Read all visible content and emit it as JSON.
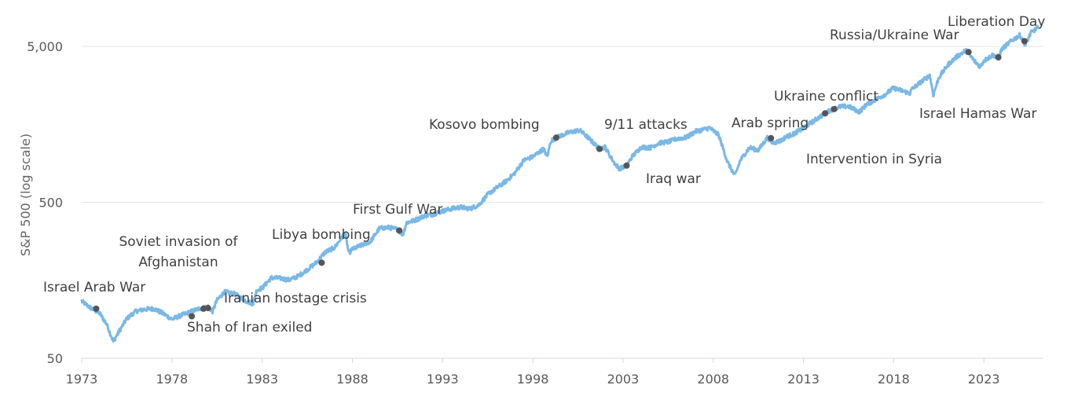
{
  "chart_data": {
    "type": "line",
    "title": "",
    "xlabel": "",
    "ylabel": "S&P 500 (log  scale)",
    "y_scale": "log",
    "ylim": [
      50,
      7000
    ],
    "xlim": [
      1973.0,
      2026.3
    ],
    "grid": true,
    "colors": {
      "series": "#7ab8e5",
      "dots": "#555555",
      "grid": "#e3e6ea",
      "text": "#3f3f3f"
    },
    "x_ticks": [
      {
        "value": 1973,
        "label": "1973"
      },
      {
        "value": 1978,
        "label": "1978"
      },
      {
        "value": 1983,
        "label": "1983"
      },
      {
        "value": 1988,
        "label": "1988"
      },
      {
        "value": 1993,
        "label": "1993"
      },
      {
        "value": 1998,
        "label": "1998"
      },
      {
        "value": 2003,
        "label": "2003"
      },
      {
        "value": 2008,
        "label": "2008"
      },
      {
        "value": 2013,
        "label": "2013"
      },
      {
        "value": 2018,
        "label": "2018"
      },
      {
        "value": 2023,
        "label": "2023"
      }
    ],
    "y_ticks": [
      {
        "value": 50,
        "label": "50"
      },
      {
        "value": 500,
        "label": "500"
      },
      {
        "value": 5000,
        "label": "5,000"
      }
    ],
    "series": [
      {
        "name": "S&P 500",
        "x": [
          1973.0,
          1973.5,
          1974.0,
          1974.4,
          1974.75,
          1975.0,
          1975.5,
          1976.0,
          1976.5,
          1977.0,
          1977.5,
          1978.0,
          1978.5,
          1979.0,
          1979.5,
          1980.0,
          1980.25,
          1980.5,
          1980.9,
          1981.5,
          1982.0,
          1982.5,
          1982.7,
          1983.0,
          1983.5,
          1984.0,
          1984.5,
          1985.0,
          1985.5,
          1986.0,
          1986.5,
          1987.0,
          1987.6,
          1987.8,
          1988.0,
          1988.5,
          1989.0,
          1989.5,
          1990.0,
          1990.5,
          1990.8,
          1991.0,
          1991.5,
          1992.0,
          1992.5,
          1993.0,
          1993.5,
          1994.0,
          1994.5,
          1995.0,
          1995.5,
          1996.0,
          1996.5,
          1997.0,
          1997.5,
          1998.0,
          1998.6,
          1998.8,
          1999.0,
          1999.5,
          2000.0,
          2000.6,
          2001.0,
          2001.7,
          2002.0,
          2002.5,
          2002.8,
          2003.2,
          2003.5,
          2004.0,
          2004.5,
          2005.0,
          2005.5,
          2006.0,
          2006.5,
          2007.0,
          2007.8,
          2008.3,
          2008.8,
          2009.2,
          2009.5,
          2010.0,
          2010.5,
          2011.0,
          2011.3,
          2011.8,
          2012.0,
          2012.5,
          2013.0,
          2013.5,
          2014.0,
          2014.5,
          2015.0,
          2015.5,
          2016.1,
          2016.5,
          2017.0,
          2017.5,
          2018.0,
          2018.9,
          2019.0,
          2019.5,
          2020.0,
          2020.2,
          2020.5,
          2021.0,
          2021.5,
          2022.0,
          2022.5,
          2022.8,
          2023.0,
          2023.5,
          2023.8,
          2024.0,
          2024.5,
          2025.0,
          2025.3,
          2025.6,
          2026.0
        ],
        "values": [
          116,
          105,
          97,
          82,
          64,
          72,
          90,
          100,
          103,
          104,
          97,
          89,
          94,
          99,
          104,
          107,
          100,
          118,
          133,
          129,
          118,
          112,
          137,
          141,
          164,
          163,
          159,
          168,
          185,
          205,
          240,
          255,
          320,
          235,
          250,
          265,
          280,
          340,
          345,
          335,
          310,
          370,
          385,
          410,
          420,
          440,
          455,
          465,
          455,
          480,
          560,
          620,
          680,
          770,
          930,
          980,
          1100,
          980,
          1240,
          1330,
          1400,
          1450,
          1320,
          1100,
          1130,
          900,
          820,
          860,
          980,
          1130,
          1120,
          1200,
          1220,
          1280,
          1300,
          1420,
          1500,
          1350,
          900,
          740,
          930,
          1120,
          1080,
          1300,
          1200,
          1250,
          1310,
          1380,
          1500,
          1640,
          1800,
          1950,
          2050,
          2060,
          1900,
          2120,
          2280,
          2450,
          2700,
          2500,
          2650,
          2950,
          3250,
          2450,
          3150,
          3800,
          4300,
          4700,
          4000,
          3700,
          4050,
          4400,
          4250,
          4800,
          5400,
          5900,
          5100,
          6100,
          6600
        ]
      }
    ],
    "annotations": [
      {
        "label": "Israel Arab War",
        "x": 1973.8,
        "y": 104
      },
      {
        "label": "Shah of Iran exiled",
        "x": 1979.1,
        "y": 93
      },
      {
        "label": "Soviet invasion of",
        "x": 1980.0,
        "y": 105,
        "line2": "Afghanistan"
      },
      {
        "label": "Iranian hostage crisis",
        "x": 1979.75,
        "y": 104
      },
      {
        "label": "Libya bombing",
        "x": 1986.3,
        "y": 205
      },
      {
        "label": "First Gulf War",
        "x": 1990.6,
        "y": 330
      },
      {
        "label": "Kosovo bombing",
        "x": 1999.3,
        "y": 1300
      },
      {
        "label": "9/11 attacks",
        "x": 2001.7,
        "y": 1100
      },
      {
        "label": "Iraq war",
        "x": 2003.2,
        "y": 860
      },
      {
        "label": "Arab spring",
        "x": 2011.2,
        "y": 1290
      },
      {
        "label": "Ukraine conflict",
        "x": 2014.2,
        "y": 1860
      },
      {
        "label": "Intervention in Syria",
        "x": 2014.7,
        "y": 1980
      },
      {
        "label": "Russia/Ukraine War",
        "x": 2022.15,
        "y": 4600
      },
      {
        "label": "Israel Hamas War",
        "x": 2023.8,
        "y": 4250
      },
      {
        "label": "Liberation Day",
        "x": 2025.25,
        "y": 5400
      }
    ]
  }
}
